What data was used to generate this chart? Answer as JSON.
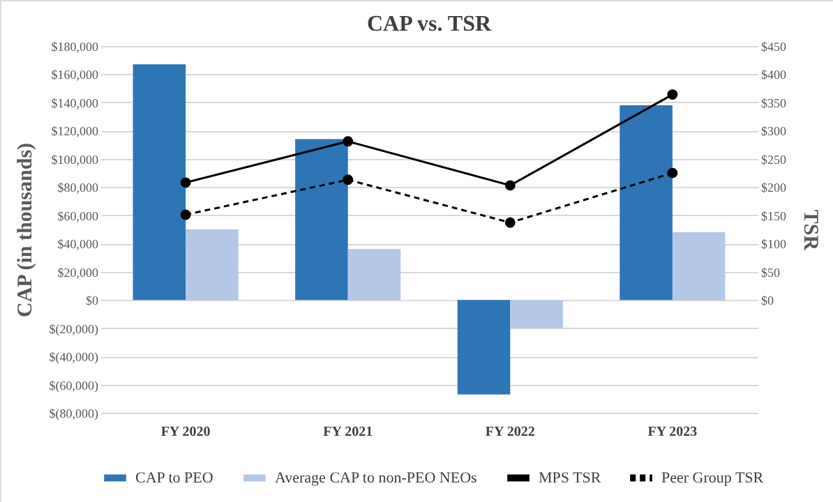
{
  "chart_data": {
    "type": "bar",
    "title": "CAP vs. TSR",
    "ylabel": "CAP (in thousands)",
    "y2label": "TSR",
    "categories": [
      "FY 2020",
      "FY 2021",
      "FY 2022",
      "FY 2023"
    ],
    "series": [
      {
        "name": "CAP to PEO",
        "type": "bar",
        "color": "#2e75b6",
        "values": [
          167000,
          114000,
          -67000,
          138000
        ]
      },
      {
        "name": "Average CAP to non-PEO NEOs",
        "type": "bar",
        "color": "#b4c7e7",
        "values": [
          50000,
          36000,
          -20000,
          48000
        ]
      },
      {
        "name": "MPS TSR",
        "type": "line",
        "axis": "y2",
        "color": "#000000",
        "marker": "circle",
        "line_style": "solid",
        "values": [
          208,
          281,
          203,
          364
        ]
      },
      {
        "name": "Peer Group TSR",
        "type": "line",
        "axis": "y2",
        "color": "#000000",
        "marker": "circle",
        "line_style": "dashed",
        "values": [
          151,
          213,
          137,
          225
        ]
      }
    ],
    "ylim": [
      -80000,
      180000
    ],
    "yticks": [
      {
        "value": -80000,
        "label": "$(80,000)"
      },
      {
        "value": -60000,
        "label": "$(60,000)"
      },
      {
        "value": -40000,
        "label": "$(40,000)"
      },
      {
        "value": -20000,
        "label": "$(20,000)"
      },
      {
        "value": 0,
        "label": "$0"
      },
      {
        "value": 20000,
        "label": "$20,000"
      },
      {
        "value": 40000,
        "label": "$40,000"
      },
      {
        "value": 60000,
        "label": "$60,000"
      },
      {
        "value": 80000,
        "label": "$80,000"
      },
      {
        "value": 100000,
        "label": "$100,000"
      },
      {
        "value": 120000,
        "label": "$120,000"
      },
      {
        "value": 140000,
        "label": "$140,000"
      },
      {
        "value": 160000,
        "label": "$160,000"
      },
      {
        "value": 180000,
        "label": "$180,000"
      }
    ],
    "y2lim": [
      -200,
      450
    ],
    "y2ticks": [
      {
        "value": 0,
        "label": "$0"
      },
      {
        "value": 50,
        "label": "$50"
      },
      {
        "value": 100,
        "label": "$100"
      },
      {
        "value": 150,
        "label": "$150"
      },
      {
        "value": 200,
        "label": "$200"
      },
      {
        "value": 250,
        "label": "$250"
      },
      {
        "value": 300,
        "label": "$300"
      },
      {
        "value": 350,
        "label": "$350"
      },
      {
        "value": 400,
        "label": "$400"
      },
      {
        "value": 450,
        "label": "$450"
      }
    ],
    "grid": "y",
    "legend": "bottom"
  }
}
